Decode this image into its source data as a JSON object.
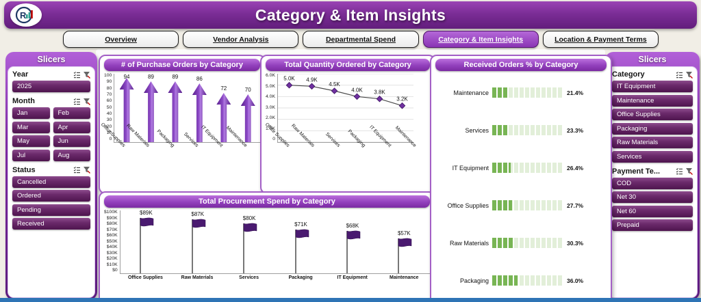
{
  "header": {
    "title": "Category & Item Insights",
    "logo_letter": "R"
  },
  "tabs": [
    {
      "label": "Overview",
      "active": false
    },
    {
      "label": "Vendor Analysis",
      "active": false
    },
    {
      "label": "Departmental Spend",
      "active": false
    },
    {
      "label": "Category & Item Insights",
      "active": true
    },
    {
      "label": "Location & Payment Terms",
      "active": false
    }
  ],
  "left_slicers": {
    "title": "Slicers",
    "sections": [
      {
        "label": "Year",
        "layout": "list",
        "items": [
          "2025"
        ]
      },
      {
        "label": "Month",
        "layout": "grid",
        "items": [
          "Jan",
          "Feb",
          "Mar",
          "Apr",
          "May",
          "Jun",
          "Jul",
          "Aug"
        ]
      },
      {
        "label": "Status",
        "layout": "list",
        "items": [
          "Cancelled",
          "Ordered",
          "Pending",
          "Received"
        ]
      }
    ]
  },
  "right_slicers": {
    "title": "Slicers",
    "sections": [
      {
        "label": "Category",
        "layout": "list",
        "items": [
          "IT Equipment",
          "Maintenance",
          "Office Supplies",
          "Packaging",
          "Raw Materials",
          "Services"
        ]
      },
      {
        "label": "Payment Te...",
        "layout": "list",
        "items": [
          "COD",
          "Net 30",
          "Net 60",
          "Prepaid"
        ]
      }
    ]
  },
  "chart_data": [
    {
      "type": "bar",
      "bar_style": "upward-arrow",
      "title": "# of Purchase Orders by Category",
      "categories": [
        "Office Supplies",
        "Raw Materials",
        "Packaging",
        "Services",
        "IT Equipment",
        "Maintenance"
      ],
      "values": [
        94,
        89,
        89,
        86,
        72,
        70
      ],
      "labels": [
        "94",
        "89",
        "89",
        "86",
        "72",
        "70"
      ],
      "ylim": [
        0,
        100
      ],
      "yticks": [
        "0",
        "10",
        "20",
        "30",
        "40",
        "50",
        "60",
        "70",
        "80",
        "90",
        "100"
      ],
      "xlabel": "",
      "ylabel": ""
    },
    {
      "type": "line",
      "title": "Total Quantity Ordered by Category",
      "categories": [
        "Office Supplies",
        "Raw Materials",
        "Services",
        "Packaging",
        "IT Equipment",
        "Maintenance"
      ],
      "values": [
        5000,
        4900,
        4500,
        4000,
        3800,
        3200
      ],
      "labels": [
        "5.0K",
        "4.9K",
        "4.5K",
        "4.0K",
        "3.8K",
        "3.2K"
      ],
      "ylim": [
        0,
        6000
      ],
      "yticks": [
        "0",
        "1.0K",
        "2.0K",
        "3.0K",
        "4.0K",
        "5.0K",
        "6.0K"
      ],
      "grid": true,
      "xlabel": "",
      "ylabel": ""
    },
    {
      "type": "bar",
      "bar_style": "flag-marker",
      "title": "Total Procurement Spend by Category",
      "categories": [
        "Office Supplies",
        "Raw Materials",
        "Services",
        "Packaging",
        "IT Equipment",
        "Maintenance"
      ],
      "values": [
        89,
        87,
        80,
        71,
        68,
        57
      ],
      "labels": [
        "$89K",
        "$87K",
        "$80K",
        "$71K",
        "$68K",
        "$57K"
      ],
      "unit": "K",
      "ylim": [
        0,
        100
      ],
      "yticks": [
        "$0",
        "$10K",
        "$20K",
        "$30K",
        "$40K",
        "$50K",
        "$60K",
        "$70K",
        "$80K",
        "$90K",
        "$100K"
      ],
      "xlabel": "",
      "ylabel": ""
    },
    {
      "type": "bar",
      "orientation": "horizontal",
      "bar_style": "segmented-green",
      "title": "Received Orders % by Category",
      "categories": [
        "Maintenance",
        "Services",
        "IT Equipment",
        "Office Supplies",
        "Raw Materials",
        "Packaging"
      ],
      "values": [
        21.4,
        23.3,
        26.4,
        27.7,
        30.3,
        36.0
      ],
      "labels": [
        "21.4%",
        "23.3%",
        "26.4%",
        "27.7%",
        "30.3%",
        "36.0%"
      ],
      "xlim": [
        0,
        100
      ]
    }
  ],
  "colors": {
    "header_purple": "#7b2d96",
    "tab_active_purple": "#8a35b4",
    "panel_border_purple": "#a35fc6",
    "slicer_button_purple": "#5e1d5e",
    "arrow_bar_purple": "#7030a0",
    "flag_purple": "#4a1a70",
    "received_bar_green": "#78b554",
    "footer_strip_blue": "#2e74b5"
  }
}
